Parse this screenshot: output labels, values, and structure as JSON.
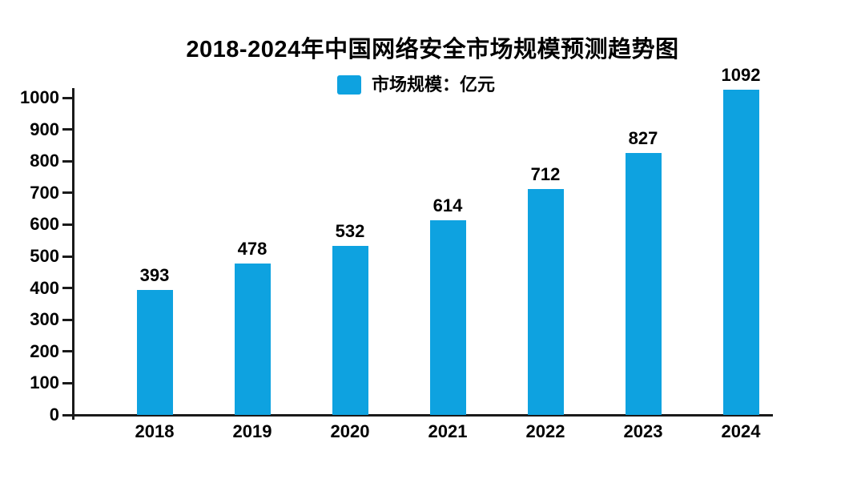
{
  "title": "2018-2024年中国网络安全市场规模预测趋势图",
  "legend": {
    "label": "市场规模：亿元"
  },
  "chart_data": {
    "type": "bar",
    "title": "2018-2024年中国网络安全市场规模预测趋势图",
    "legend_label": "市场规模：亿元",
    "categories": [
      "2018",
      "2019",
      "2020",
      "2021",
      "2022",
      "2023",
      "2024"
    ],
    "values": [
      393,
      478,
      532,
      614,
      712,
      827,
      1092
    ],
    "xlabel": "",
    "ylabel": "",
    "ylim": [
      0,
      1000
    ],
    "y_ticks": [
      0,
      100,
      200,
      300,
      400,
      500,
      600,
      700,
      800,
      900,
      1000
    ],
    "grid": false,
    "legend_position": "top-center",
    "bar_color": "#0ea2e0",
    "text_color": "#000000",
    "axis_color": "#1a1a1a",
    "background_color": "#ffffff"
  }
}
